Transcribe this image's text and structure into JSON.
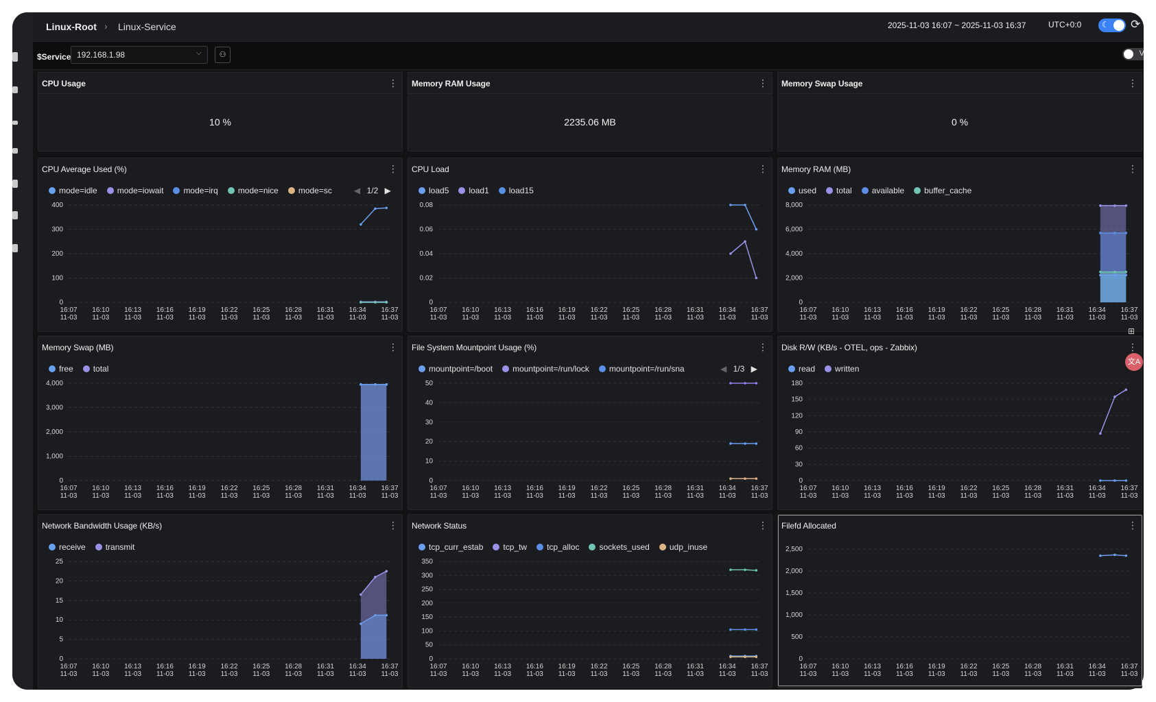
{
  "header": {
    "breadcrumb_root": "Linux-Root",
    "breadcrumb_sep": "›",
    "breadcrumb_child": "Linux-Service",
    "time_range": "2025-11-03 16:07 ~ 2025-11-03 16:37",
    "timezone": "UTC+0:0",
    "theme_icon": "moon-icon",
    "refresh_icon": "refresh-icon",
    "info_icon": "info-icon",
    "info_glyph": "i"
  },
  "variables": {
    "service_label": "$Service",
    "service_value": "192.168.1.98",
    "view_toggle_label": "V"
  },
  "colors": {
    "blue": "#6a9ff0",
    "purple": "#9b92e8",
    "blue2": "#5b8fe6",
    "teal": "#6fc3b2",
    "tan": "#dcb486",
    "violet": "#8f7ff0"
  },
  "time_ticks": [
    {
      "t": "16:07",
      "d": "11-03"
    },
    {
      "t": "16:10",
      "d": "11-03"
    },
    {
      "t": "16:13",
      "d": "11-03"
    },
    {
      "t": "16:16",
      "d": "11-03"
    },
    {
      "t": "16:19",
      "d": "11-03"
    },
    {
      "t": "16:22",
      "d": "11-03"
    },
    {
      "t": "16:25",
      "d": "11-03"
    },
    {
      "t": "16:28",
      "d": "11-03"
    },
    {
      "t": "16:31",
      "d": "11-03"
    },
    {
      "t": "16:34",
      "d": "11-03"
    },
    {
      "t": "16:37",
      "d": "11-03"
    }
  ],
  "panels": {
    "cpu_usage": {
      "title": "CPU Usage",
      "value": "10 %"
    },
    "mem_ram_usage": {
      "title": "Memory RAM Usage",
      "value": "2235.06 MB"
    },
    "mem_swap_usage": {
      "title": "Memory Swap Usage",
      "value": "0 %"
    },
    "cpu_avg": {
      "title": "CPU Average Used (%)",
      "pager": "1/2"
    },
    "cpu_load": {
      "title": "CPU Load"
    },
    "mem_ram": {
      "title": "Memory RAM (MB)"
    },
    "mem_swap": {
      "title": "Memory Swap (MB)"
    },
    "fs_usage": {
      "title": "File System Mountpoint Usage (%)",
      "pager": "1/3"
    },
    "disk_rw": {
      "title": "Disk R/W (KB/s - OTEL, ops - Zabbix)"
    },
    "net_bw": {
      "title": "Network Bandwidth Usage (KB/s)"
    },
    "net_status": {
      "title": "Network Status"
    },
    "filefd": {
      "title": "Filefd Allocated"
    }
  },
  "chart_data": [
    {
      "id": "cpu_avg",
      "type": "line",
      "ylim": [
        0,
        400
      ],
      "yticks": [
        "400",
        "300",
        "200",
        "100",
        "0"
      ],
      "legend": [
        "mode=idle",
        "mode=iowait",
        "mode=irq",
        "mode=nice",
        "mode=sc"
      ],
      "series": [
        {
          "name": "mode=idle",
          "color": "#6a9ff0",
          "points": [
            [
              0.91,
              320
            ],
            [
              0.955,
              385
            ],
            [
              0.99,
              388
            ]
          ]
        },
        {
          "name": "mode=iowait",
          "color": "#9b92e8",
          "points": [
            [
              0.91,
              2
            ],
            [
              0.955,
              2
            ],
            [
              0.99,
              2
            ]
          ]
        },
        {
          "name": "mode=irq",
          "color": "#5b8fe6",
          "points": [
            [
              0.91,
              0
            ],
            [
              0.955,
              0
            ],
            [
              0.99,
              0
            ]
          ]
        },
        {
          "name": "mode=nice",
          "color": "#6fc3b2",
          "points": [
            [
              0.91,
              0
            ],
            [
              0.955,
              0
            ],
            [
              0.99,
              0
            ]
          ]
        }
      ]
    },
    {
      "id": "cpu_load",
      "type": "line",
      "ylim": [
        0,
        0.08
      ],
      "yticks": [
        "0.08",
        "0.06",
        "0.04",
        "0.02",
        "0"
      ],
      "legend": [
        "load5",
        "load1",
        "load15"
      ],
      "series": [
        {
          "name": "load5",
          "color": "#6a9ff0",
          "points": [
            [
              0.91,
              0.08
            ],
            [
              0.955,
              0.08
            ],
            [
              0.99,
              0.06
            ]
          ]
        },
        {
          "name": "load1",
          "color": "#9b92e8",
          "points": [
            [
              0.91,
              0.04
            ],
            [
              0.955,
              0.05
            ],
            [
              0.99,
              0.02
            ]
          ]
        }
      ]
    },
    {
      "id": "mem_ram",
      "type": "area",
      "ylim": [
        0,
        8000
      ],
      "yticks": [
        "8,000",
        "6,000",
        "4,000",
        "2,000",
        "0"
      ],
      "legend": [
        "used",
        "total",
        "available",
        "buffer_cache"
      ],
      "series": [
        {
          "name": "total",
          "color": "#9b92e8",
          "points": [
            [
              0.91,
              7950
            ],
            [
              0.955,
              7950
            ],
            [
              0.99,
              7950
            ]
          ]
        },
        {
          "name": "available",
          "color": "#5b8fe6",
          "points": [
            [
              0.91,
              5700
            ],
            [
              0.955,
              5700
            ],
            [
              0.99,
              5700
            ]
          ]
        },
        {
          "name": "buffer_cache",
          "color": "#6fc3b2",
          "points": [
            [
              0.91,
              2500
            ],
            [
              0.955,
              2500
            ],
            [
              0.99,
              2500
            ]
          ]
        },
        {
          "name": "used",
          "color": "#6a9ff0",
          "points": [
            [
              0.91,
              2235
            ],
            [
              0.955,
              2235
            ],
            [
              0.99,
              2235
            ]
          ]
        }
      ]
    },
    {
      "id": "mem_swap",
      "type": "area",
      "ylim": [
        0,
        4000
      ],
      "yticks": [
        "4,000",
        "3,000",
        "2,000",
        "1,000",
        "0"
      ],
      "legend": [
        "free",
        "total"
      ],
      "series": [
        {
          "name": "total",
          "color": "#9b92e8",
          "points": [
            [
              0.91,
              3950
            ],
            [
              0.955,
              3950
            ],
            [
              0.99,
              3950
            ]
          ]
        },
        {
          "name": "free",
          "color": "#6a9ff0",
          "points": [
            [
              0.91,
              3950
            ],
            [
              0.955,
              3950
            ],
            [
              0.99,
              3950
            ]
          ]
        }
      ]
    },
    {
      "id": "fs_usage",
      "type": "line",
      "ylim": [
        0,
        50
      ],
      "yticks": [
        "50",
        "40",
        "30",
        "20",
        "10",
        "0"
      ],
      "legend": [
        "mountpoint=/boot",
        "mountpoint=/run/lock",
        "mountpoint=/run/sna"
      ],
      "series": [
        {
          "name": "mountpoint=/run/sna",
          "color": "#8f7ff0",
          "points": [
            [
              0.91,
              50
            ],
            [
              0.955,
              50
            ],
            [
              0.99,
              50
            ]
          ]
        },
        {
          "name": "mountpoint=/boot",
          "color": "#6a9ff0",
          "points": [
            [
              0.91,
              19
            ],
            [
              0.955,
              19
            ],
            [
              0.99,
              19
            ]
          ]
        },
        {
          "name": "mountpoint=/run/lock",
          "color": "#dcb486",
          "points": [
            [
              0.91,
              1
            ],
            [
              0.955,
              1
            ],
            [
              0.99,
              1
            ]
          ]
        }
      ]
    },
    {
      "id": "disk_rw",
      "type": "line",
      "ylim": [
        0,
        180
      ],
      "yticks": [
        "180",
        "150",
        "120",
        "90",
        "60",
        "30",
        "0"
      ],
      "legend": [
        "read",
        "written"
      ],
      "series": [
        {
          "name": "written",
          "color": "#9b92e8",
          "points": [
            [
              0.91,
              87
            ],
            [
              0.955,
              155
            ],
            [
              0.99,
              168
            ]
          ]
        },
        {
          "name": "read",
          "color": "#6a9ff0",
          "points": [
            [
              0.91,
              0
            ],
            [
              0.955,
              0
            ],
            [
              0.99,
              0
            ]
          ]
        }
      ]
    },
    {
      "id": "net_bw",
      "type": "area",
      "ylim": [
        0,
        25
      ],
      "yticks": [
        "25",
        "20",
        "15",
        "10",
        "5",
        "0"
      ],
      "legend": [
        "receive",
        "transmit"
      ],
      "series": [
        {
          "name": "transmit",
          "color": "#9b92e8",
          "points": [
            [
              0.91,
              16.5
            ],
            [
              0.955,
              21
            ],
            [
              0.99,
              22.5
            ]
          ]
        },
        {
          "name": "receive",
          "color": "#6a9ff0",
          "points": [
            [
              0.91,
              9
            ],
            [
              0.955,
              11.2
            ],
            [
              0.99,
              11.2
            ]
          ]
        }
      ]
    },
    {
      "id": "net_status",
      "type": "line",
      "ylim": [
        0,
        350
      ],
      "yticks": [
        "350",
        "300",
        "250",
        "200",
        "150",
        "100",
        "50",
        "0"
      ],
      "legend": [
        "tcp_curr_estab",
        "tcp_tw",
        "tcp_alloc",
        "sockets_used",
        "udp_inuse"
      ],
      "series": [
        {
          "name": "sockets_used",
          "color": "#6fc3b2",
          "points": [
            [
              0.91,
              320
            ],
            [
              0.955,
              320
            ],
            [
              0.99,
              318
            ]
          ]
        },
        {
          "name": "tcp_alloc",
          "color": "#5b8fe6",
          "points": [
            [
              0.91,
              105
            ],
            [
              0.955,
              105
            ],
            [
              0.99,
              105
            ]
          ]
        },
        {
          "name": "tcp_curr_estab",
          "color": "#6a9ff0",
          "points": [
            [
              0.91,
              10
            ],
            [
              0.955,
              10
            ],
            [
              0.99,
              10
            ]
          ]
        },
        {
          "name": "udp_inuse",
          "color": "#dcb486",
          "points": [
            [
              0.91,
              7
            ],
            [
              0.955,
              7
            ],
            [
              0.99,
              7
            ]
          ]
        }
      ]
    },
    {
      "id": "filefd",
      "type": "line",
      "ylim": [
        0,
        2500
      ],
      "yticks": [
        "2,500",
        "2,000",
        "1,500",
        "1,000",
        "500",
        "0"
      ],
      "legend": [],
      "series": [
        {
          "name": "",
          "color": "#6a9ff0",
          "points": [
            [
              0.91,
              2350
            ],
            [
              0.955,
              2370
            ],
            [
              0.99,
              2350
            ]
          ]
        }
      ]
    }
  ]
}
